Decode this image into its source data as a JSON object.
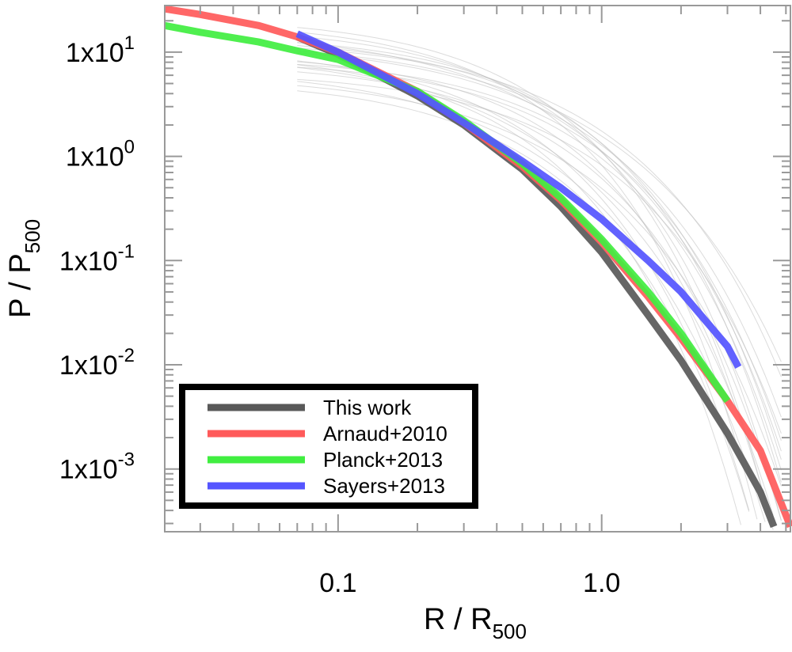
{
  "chart_data": {
    "type": "line",
    "xlabel": {
      "main": "R / R",
      "sub": "500"
    },
    "ylabel": {
      "main": "P / P",
      "sub": "500"
    },
    "x_scale": "log",
    "y_scale": "log",
    "xlim": [
      0.022,
      5.2
    ],
    "ylim": [
      0.00025,
      28
    ],
    "x_ticks": [
      {
        "value": 0.1,
        "label": "0.1"
      },
      {
        "value": 1.0,
        "label": "1.0"
      }
    ],
    "y_ticks": [
      {
        "value": 10,
        "base": "1x10",
        "exp": "1"
      },
      {
        "value": 1,
        "base": "1x10",
        "exp": "0"
      },
      {
        "value": 0.1,
        "base": "1x10",
        "exp": "-1"
      },
      {
        "value": 0.01,
        "base": "1x10",
        "exp": "-2"
      },
      {
        "value": 0.001,
        "base": "1x10",
        "exp": "-3"
      }
    ],
    "legend_position": "bottom-left",
    "series": [
      {
        "name": "This work",
        "color": "#595959",
        "x": [
          0.07,
          0.1,
          0.2,
          0.3,
          0.5,
          0.7,
          1.0,
          1.5,
          2.0,
          3.0,
          4.0,
          4.5
        ],
        "y": [
          14,
          9.5,
          3.8,
          2.0,
          0.75,
          0.33,
          0.12,
          0.03,
          0.011,
          0.0022,
          0.0006,
          0.00028
        ]
      },
      {
        "name": "Arnaud+2010",
        "color": "#ff5a5a",
        "x": [
          0.022,
          0.03,
          0.05,
          0.07,
          0.1,
          0.2,
          0.3,
          0.5,
          0.7,
          1.0,
          1.5,
          2.0,
          3.0,
          4.0,
          5.2
        ],
        "y": [
          26,
          23,
          18,
          14,
          10,
          4.2,
          2.1,
          0.8,
          0.38,
          0.15,
          0.045,
          0.018,
          0.0045,
          0.0015,
          0.00028
        ]
      },
      {
        "name": "Planck+2013",
        "color": "#40ee40",
        "x": [
          0.022,
          0.03,
          0.05,
          0.07,
          0.1,
          0.2,
          0.3,
          0.5,
          0.7,
          1.0,
          1.5,
          2.0,
          3.0
        ],
        "y": [
          18,
          15.5,
          12.5,
          10.3,
          8.5,
          4.2,
          2.2,
          0.85,
          0.4,
          0.16,
          0.05,
          0.02,
          0.0045
        ]
      },
      {
        "name": "Sayers+2013",
        "color": "#5555ff",
        "x": [
          0.07,
          0.1,
          0.2,
          0.3,
          0.5,
          0.7,
          1.0,
          1.5,
          2.0,
          3.0,
          3.3
        ],
        "y": [
          15,
          10,
          4.0,
          2.1,
          0.9,
          0.5,
          0.25,
          0.1,
          0.05,
          0.015,
          0.0095
        ]
      }
    ],
    "background_curves_color": "#bdbdbd"
  }
}
